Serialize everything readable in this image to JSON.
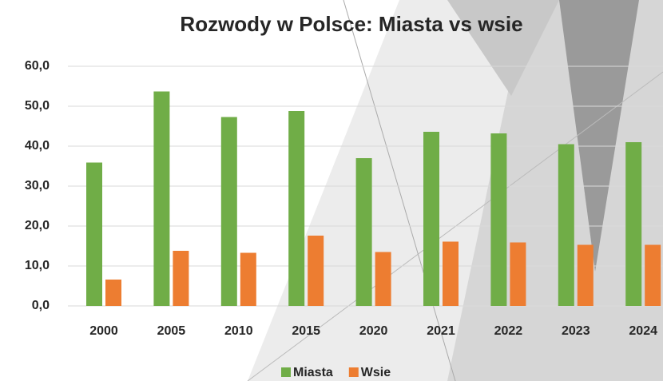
{
  "chart_data": {
    "type": "bar",
    "title": "Rozwody w Polsce: Miasta vs wsie",
    "categories": [
      "2000",
      "2005",
      "2010",
      "2015",
      "2020",
      "2021",
      "2022",
      "2023",
      "2024"
    ],
    "series": [
      {
        "name": "Miasta",
        "color": "#70ad47",
        "values": [
          35.9,
          53.7,
          47.3,
          48.8,
          37.0,
          43.6,
          43.2,
          40.5,
          41.0
        ]
      },
      {
        "name": "Wsie",
        "color": "#ed7d31",
        "values": [
          6.6,
          13.8,
          13.3,
          17.6,
          13.5,
          16.1,
          15.9,
          15.3,
          15.3
        ]
      }
    ],
    "ylim": [
      0,
      60
    ],
    "yticks": [
      {
        "value": 0,
        "label": "0,0"
      },
      {
        "value": 10,
        "label": "10,0"
      },
      {
        "value": 20,
        "label": "20,0"
      },
      {
        "value": 30,
        "label": "30,0"
      },
      {
        "value": 40,
        "label": "40,0"
      },
      {
        "value": 50,
        "label": "50,0"
      },
      {
        "value": 60,
        "label": "60,0"
      }
    ],
    "grid": true,
    "legend": "bottom"
  }
}
